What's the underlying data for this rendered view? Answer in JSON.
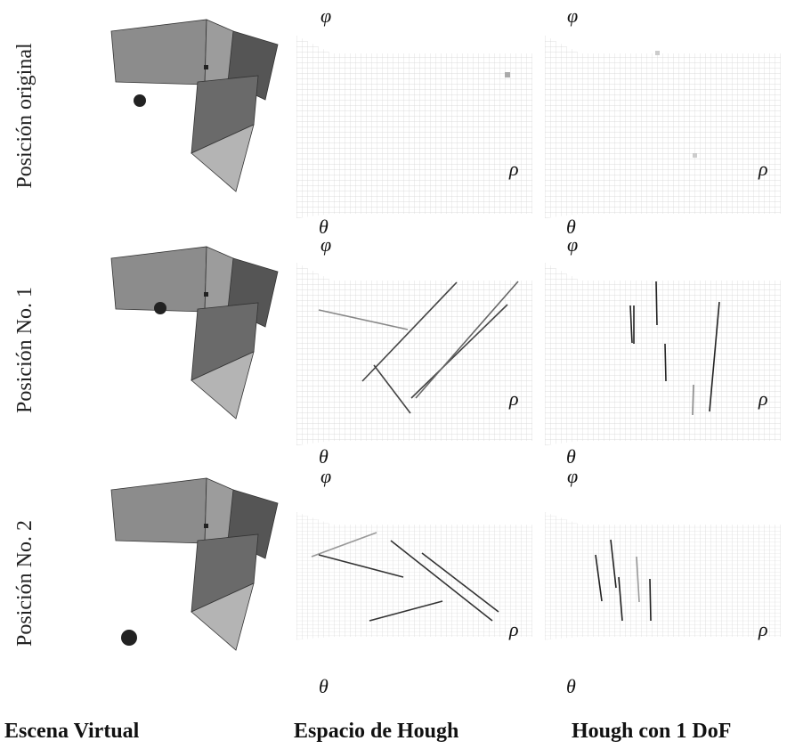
{
  "figure": {
    "column_labels": [
      "Escena Virtual",
      "Espacio de Hough",
      "Hough con 1 DoF"
    ],
    "rows": [
      {
        "label": "Posición original",
        "hough": {
          "phi": "φ",
          "rho": "ρ",
          "theta": "θ"
        },
        "dof": {
          "phi": "φ",
          "rho": "ρ",
          "theta": "θ"
        }
      },
      {
        "label": "Posición No. 1",
        "hough": {
          "phi": "φ",
          "rho": "ρ",
          "theta": "θ"
        },
        "dof": {
          "phi": "φ",
          "rho": "ρ",
          "theta": "θ"
        }
      },
      {
        "label": "Posición No. 2",
        "hough": {
          "phi": "φ",
          "rho": "ρ",
          "theta": "θ"
        },
        "dof": {
          "phi": "φ",
          "rho": "ρ",
          "theta": "θ"
        }
      }
    ]
  }
}
